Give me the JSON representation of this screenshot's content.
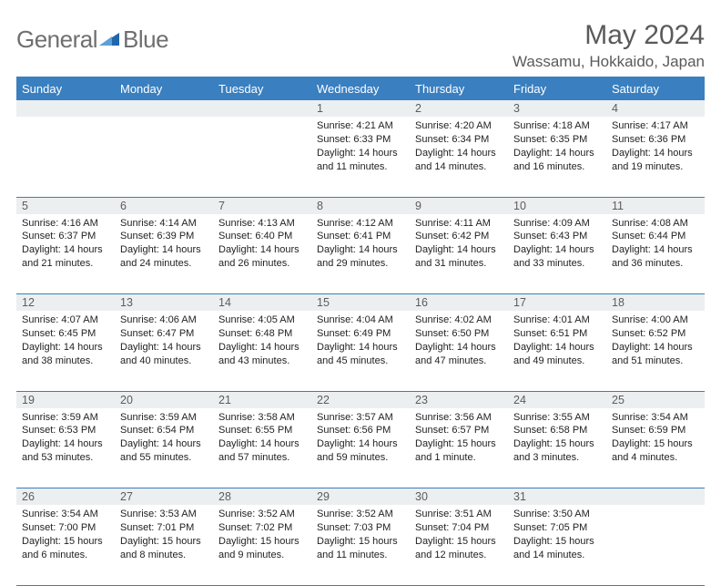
{
  "brand": {
    "part1": "General",
    "part2": "Blue"
  },
  "title": "May 2024",
  "location": "Wassamu, Hokkaido, Japan",
  "colors": {
    "header_bg": "#3a7fbf",
    "header_text": "#ffffff",
    "daynum_bg": "#eceff0",
    "text": "#222222",
    "logo_gray": "#6f6f6f",
    "logo_accent": "#1f66ab",
    "rule": "#3a7fbf"
  },
  "weekdays": [
    "Sunday",
    "Monday",
    "Tuesday",
    "Wednesday",
    "Thursday",
    "Friday",
    "Saturday"
  ],
  "weeks": [
    {
      "nums": [
        "",
        "",
        "",
        "1",
        "2",
        "3",
        "4"
      ],
      "cells": [
        "",
        "",
        "",
        "Sunrise: 4:21 AM\nSunset: 6:33 PM\nDaylight: 14 hours and 11 minutes.",
        "Sunrise: 4:20 AM\nSunset: 6:34 PM\nDaylight: 14 hours and 14 minutes.",
        "Sunrise: 4:18 AM\nSunset: 6:35 PM\nDaylight: 14 hours and 16 minutes.",
        "Sunrise: 4:17 AM\nSunset: 6:36 PM\nDaylight: 14 hours and 19 minutes."
      ]
    },
    {
      "nums": [
        "5",
        "6",
        "7",
        "8",
        "9",
        "10",
        "11"
      ],
      "cells": [
        "Sunrise: 4:16 AM\nSunset: 6:37 PM\nDaylight: 14 hours and 21 minutes.",
        "Sunrise: 4:14 AM\nSunset: 6:39 PM\nDaylight: 14 hours and 24 minutes.",
        "Sunrise: 4:13 AM\nSunset: 6:40 PM\nDaylight: 14 hours and 26 minutes.",
        "Sunrise: 4:12 AM\nSunset: 6:41 PM\nDaylight: 14 hours and 29 minutes.",
        "Sunrise: 4:11 AM\nSunset: 6:42 PM\nDaylight: 14 hours and 31 minutes.",
        "Sunrise: 4:09 AM\nSunset: 6:43 PM\nDaylight: 14 hours and 33 minutes.",
        "Sunrise: 4:08 AM\nSunset: 6:44 PM\nDaylight: 14 hours and 36 minutes."
      ]
    },
    {
      "nums": [
        "12",
        "13",
        "14",
        "15",
        "16",
        "17",
        "18"
      ],
      "cells": [
        "Sunrise: 4:07 AM\nSunset: 6:45 PM\nDaylight: 14 hours and 38 minutes.",
        "Sunrise: 4:06 AM\nSunset: 6:47 PM\nDaylight: 14 hours and 40 minutes.",
        "Sunrise: 4:05 AM\nSunset: 6:48 PM\nDaylight: 14 hours and 43 minutes.",
        "Sunrise: 4:04 AM\nSunset: 6:49 PM\nDaylight: 14 hours and 45 minutes.",
        "Sunrise: 4:02 AM\nSunset: 6:50 PM\nDaylight: 14 hours and 47 minutes.",
        "Sunrise: 4:01 AM\nSunset: 6:51 PM\nDaylight: 14 hours and 49 minutes.",
        "Sunrise: 4:00 AM\nSunset: 6:52 PM\nDaylight: 14 hours and 51 minutes."
      ]
    },
    {
      "nums": [
        "19",
        "20",
        "21",
        "22",
        "23",
        "24",
        "25"
      ],
      "cells": [
        "Sunrise: 3:59 AM\nSunset: 6:53 PM\nDaylight: 14 hours and 53 minutes.",
        "Sunrise: 3:59 AM\nSunset: 6:54 PM\nDaylight: 14 hours and 55 minutes.",
        "Sunrise: 3:58 AM\nSunset: 6:55 PM\nDaylight: 14 hours and 57 minutes.",
        "Sunrise: 3:57 AM\nSunset: 6:56 PM\nDaylight: 14 hours and 59 minutes.",
        "Sunrise: 3:56 AM\nSunset: 6:57 PM\nDaylight: 15 hours and 1 minute.",
        "Sunrise: 3:55 AM\nSunset: 6:58 PM\nDaylight: 15 hours and 3 minutes.",
        "Sunrise: 3:54 AM\nSunset: 6:59 PM\nDaylight: 15 hours and 4 minutes."
      ]
    },
    {
      "nums": [
        "26",
        "27",
        "28",
        "29",
        "30",
        "31",
        ""
      ],
      "cells": [
        "Sunrise: 3:54 AM\nSunset: 7:00 PM\nDaylight: 15 hours and 6 minutes.",
        "Sunrise: 3:53 AM\nSunset: 7:01 PM\nDaylight: 15 hours and 8 minutes.",
        "Sunrise: 3:52 AM\nSunset: 7:02 PM\nDaylight: 15 hours and 9 minutes.",
        "Sunrise: 3:52 AM\nSunset: 7:03 PM\nDaylight: 15 hours and 11 minutes.",
        "Sunrise: 3:51 AM\nSunset: 7:04 PM\nDaylight: 15 hours and 12 minutes.",
        "Sunrise: 3:50 AM\nSunset: 7:05 PM\nDaylight: 15 hours and 14 minutes.",
        ""
      ]
    }
  ]
}
